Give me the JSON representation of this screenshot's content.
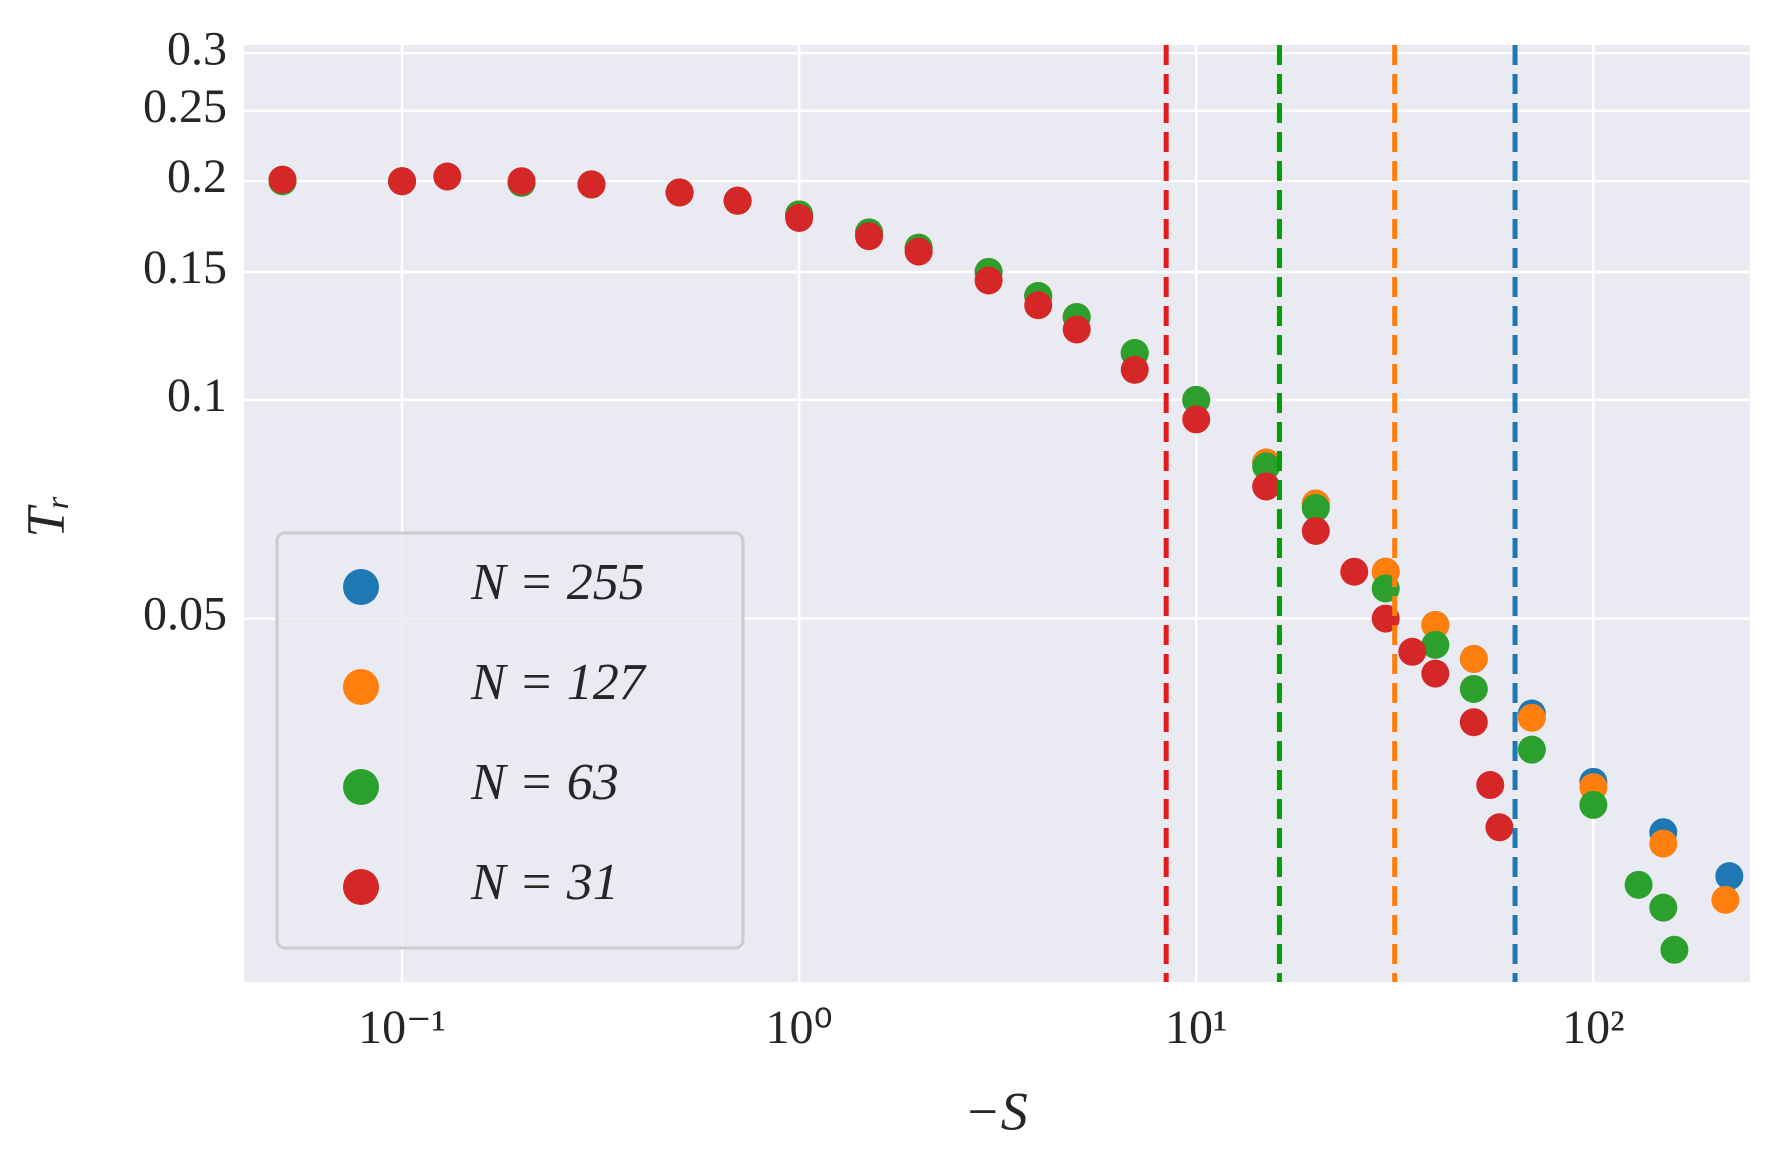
{
  "chart_data": {
    "type": "scatter",
    "xlabel": "−S",
    "ylabel": "Tᵣ",
    "xscale": "log",
    "yscale": "log",
    "grid": true,
    "legend": "lower left",
    "xlim": [
      0.04,
      248
    ],
    "ylim": [
      0.0158,
      0.308
    ],
    "xticks": [
      {
        "value": 0.1,
        "label": "10⁻¹"
      },
      {
        "value": 1,
        "label": "10⁰"
      },
      {
        "value": 10,
        "label": "10¹"
      },
      {
        "value": 100,
        "label": "10²"
      }
    ],
    "yticks": [
      0.05,
      0.1,
      0.15,
      0.2,
      0.25,
      0.3
    ],
    "series": [
      {
        "name": "N = 255",
        "color": "#1f77b4",
        "x": [
          0.05,
          0.1,
          0.2,
          0.3,
          0.5,
          0.7,
          1,
          1.5,
          2,
          3,
          4,
          5,
          7,
          10,
          15,
          20,
          30,
          40,
          50,
          70,
          100,
          150,
          220
        ],
        "values": [
          0.2,
          0.2,
          0.199,
          0.198,
          0.193,
          0.188,
          0.18,
          0.17,
          0.162,
          0.15,
          0.139,
          0.13,
          0.116,
          0.1,
          0.082,
          0.072,
          0.058,
          0.049,
          0.044,
          0.037,
          0.0298,
          0.0254,
          0.0221
        ]
      },
      {
        "name": "N = 127",
        "color": "#ff7f0e",
        "x": [
          0.05,
          0.1,
          0.2,
          0.3,
          0.5,
          0.7,
          1,
          1.5,
          2,
          3,
          4,
          5,
          7,
          10,
          15,
          20,
          30,
          40,
          50,
          70,
          100,
          150,
          215
        ],
        "values": [
          0.2,
          0.2,
          0.199,
          0.198,
          0.193,
          0.188,
          0.18,
          0.17,
          0.162,
          0.15,
          0.139,
          0.13,
          0.116,
          0.1,
          0.082,
          0.072,
          0.058,
          0.049,
          0.044,
          0.0365,
          0.0293,
          0.0245,
          0.0205
        ]
      },
      {
        "name": "N = 63",
        "color": "#2ca02c",
        "x": [
          0.05,
          0.1,
          0.2,
          0.3,
          0.5,
          0.7,
          1,
          1.5,
          2,
          3,
          4,
          5,
          7,
          10,
          15,
          20,
          30,
          40,
          50,
          70,
          100,
          130,
          150,
          160
        ],
        "values": [
          0.2,
          0.2,
          0.199,
          0.198,
          0.193,
          0.188,
          0.18,
          0.17,
          0.162,
          0.15,
          0.139,
          0.13,
          0.116,
          0.1,
          0.081,
          0.071,
          0.055,
          0.046,
          0.04,
          0.033,
          0.0277,
          0.0215,
          0.02,
          0.0175
        ]
      },
      {
        "name": "N = 31",
        "color": "#d62728",
        "x": [
          0.05,
          0.1,
          0.13,
          0.2,
          0.3,
          0.5,
          0.7,
          1,
          1.5,
          2,
          3,
          4,
          5,
          7,
          10,
          15,
          20,
          25,
          30,
          35,
          40,
          50,
          55,
          58
        ],
        "values": [
          0.201,
          0.2,
          0.203,
          0.2,
          0.198,
          0.193,
          0.188,
          0.178,
          0.168,
          0.16,
          0.146,
          0.135,
          0.125,
          0.11,
          0.094,
          0.076,
          0.066,
          0.058,
          0.05,
          0.045,
          0.042,
          0.036,
          0.0295,
          0.0258
        ]
      }
    ],
    "vlines": [
      {
        "x": 8.4,
        "color": "#e41a1c"
      },
      {
        "x": 16.2,
        "color": "#00a000"
      },
      {
        "x": 31.6,
        "color": "#ff7f0e"
      },
      {
        "x": 63.5,
        "color": "#1f77b4"
      }
    ]
  }
}
